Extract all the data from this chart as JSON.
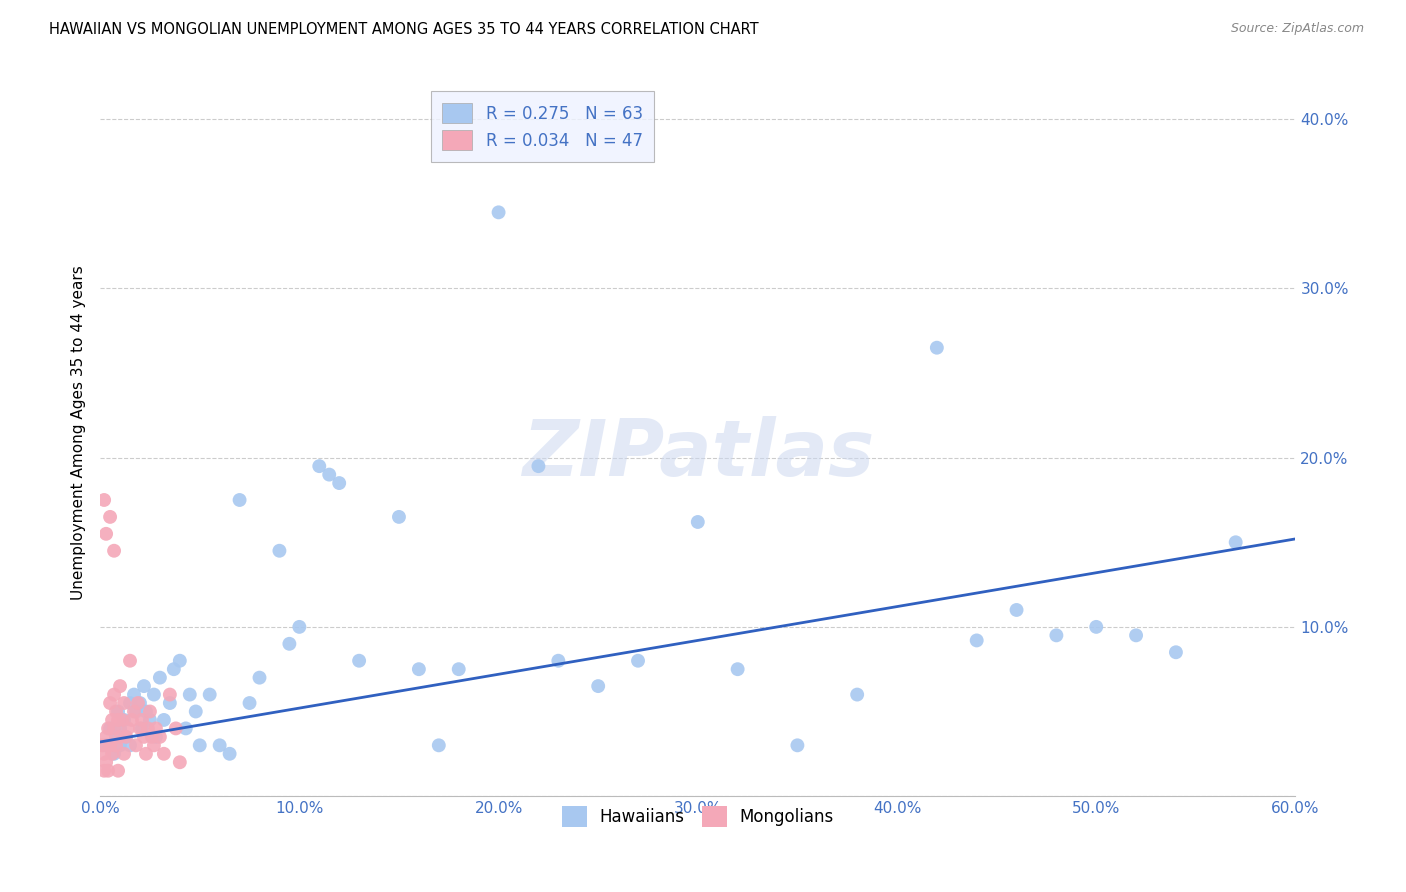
{
  "title": "HAWAIIAN VS MONGOLIAN UNEMPLOYMENT AMONG AGES 35 TO 44 YEARS CORRELATION CHART",
  "source": "Source: ZipAtlas.com",
  "ylabel": "Unemployment Among Ages 35 to 44 years",
  "xlim": [
    0.0,
    0.6
  ],
  "ylim": [
    0.0,
    0.43
  ],
  "xticks": [
    0.0,
    0.1,
    0.2,
    0.3,
    0.4,
    0.5,
    0.6
  ],
  "xticklabels": [
    "0.0%",
    "10.0%",
    "20.0%",
    "30.0%",
    "40.0%",
    "50.0%",
    "60.0%"
  ],
  "yticks": [
    0.0,
    0.1,
    0.2,
    0.3,
    0.4
  ],
  "yticklabels": [
    "",
    "10.0%",
    "20.0%",
    "30.0%",
    "40.0%"
  ],
  "hawaiians_R": "0.275",
  "hawaiians_N": "63",
  "mongolians_R": "0.034",
  "mongolians_N": "47",
  "hawaiian_color": "#a8c8f0",
  "mongolian_color": "#f4a8b8",
  "trendline_color": "#3060c0",
  "hawaiians_x": [
    0.003,
    0.005,
    0.007,
    0.008,
    0.009,
    0.01,
    0.01,
    0.012,
    0.013,
    0.015,
    0.015,
    0.017,
    0.018,
    0.02,
    0.021,
    0.022,
    0.023,
    0.025,
    0.027,
    0.028,
    0.03,
    0.032,
    0.035,
    0.037,
    0.04,
    0.043,
    0.045,
    0.048,
    0.05,
    0.055,
    0.06,
    0.065,
    0.07,
    0.075,
    0.08,
    0.09,
    0.095,
    0.1,
    0.11,
    0.115,
    0.12,
    0.13,
    0.15,
    0.16,
    0.17,
    0.18,
    0.2,
    0.22,
    0.23,
    0.25,
    0.27,
    0.3,
    0.32,
    0.35,
    0.38,
    0.42,
    0.44,
    0.46,
    0.48,
    0.5,
    0.52,
    0.54,
    0.57
  ],
  "hawaiians_y": [
    0.03,
    0.04,
    0.025,
    0.035,
    0.05,
    0.04,
    0.03,
    0.045,
    0.035,
    0.055,
    0.03,
    0.06,
    0.05,
    0.055,
    0.04,
    0.065,
    0.05,
    0.045,
    0.06,
    0.035,
    0.07,
    0.045,
    0.055,
    0.075,
    0.08,
    0.04,
    0.06,
    0.05,
    0.03,
    0.06,
    0.03,
    0.025,
    0.175,
    0.055,
    0.07,
    0.145,
    0.09,
    0.1,
    0.195,
    0.19,
    0.185,
    0.08,
    0.165,
    0.075,
    0.03,
    0.075,
    0.345,
    0.195,
    0.08,
    0.065,
    0.08,
    0.162,
    0.075,
    0.03,
    0.06,
    0.265,
    0.092,
    0.11,
    0.095,
    0.1,
    0.095,
    0.085,
    0.15
  ],
  "mongolians_x": [
    0.001,
    0.002,
    0.002,
    0.003,
    0.003,
    0.004,
    0.004,
    0.005,
    0.005,
    0.006,
    0.006,
    0.007,
    0.007,
    0.008,
    0.008,
    0.009,
    0.009,
    0.01,
    0.01,
    0.011,
    0.012,
    0.012,
    0.013,
    0.014,
    0.015,
    0.016,
    0.017,
    0.018,
    0.019,
    0.02,
    0.021,
    0.022,
    0.023,
    0.024,
    0.025,
    0.026,
    0.027,
    0.028,
    0.03,
    0.032,
    0.035,
    0.038,
    0.04,
    0.002,
    0.003,
    0.005,
    0.007
  ],
  "mongolians_y": [
    0.03,
    0.025,
    0.015,
    0.035,
    0.02,
    0.04,
    0.015,
    0.055,
    0.03,
    0.045,
    0.025,
    0.06,
    0.04,
    0.05,
    0.03,
    0.045,
    0.015,
    0.065,
    0.035,
    0.045,
    0.025,
    0.055,
    0.035,
    0.04,
    0.08,
    0.045,
    0.05,
    0.03,
    0.055,
    0.04,
    0.045,
    0.035,
    0.025,
    0.04,
    0.05,
    0.035,
    0.03,
    0.04,
    0.035,
    0.025,
    0.06,
    0.04,
    0.02,
    0.175,
    0.155,
    0.165,
    0.145
  ],
  "trendline_x0": 0.0,
  "trendline_x1": 0.6,
  "trendline_y0": 0.032,
  "trendline_y1": 0.152
}
